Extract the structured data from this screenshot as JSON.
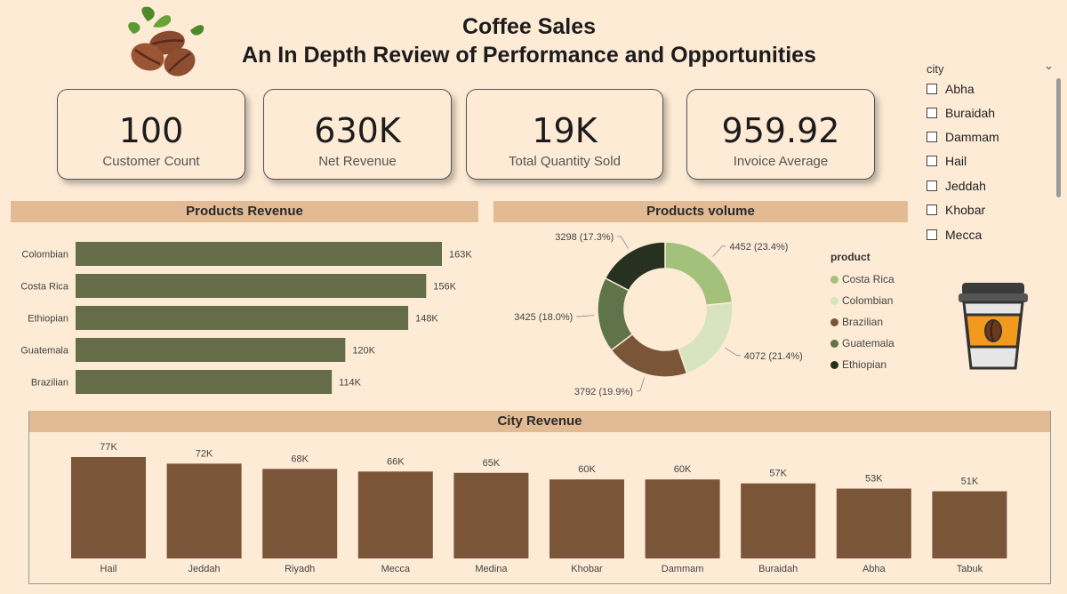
{
  "header": {
    "title_line1": "Coffee Sales",
    "title_line2": "An In Depth Review of Performance and Opportunities"
  },
  "kpis": [
    {
      "value": "100",
      "label": "Customer Count"
    },
    {
      "value": "630K",
      "label": "Net Revenue"
    },
    {
      "value": "19K",
      "label": "Total Quantity Sold"
    },
    {
      "value": "959.92",
      "label": "Invoice Average"
    }
  ],
  "slicer": {
    "title": "city",
    "items": [
      "Abha",
      "Buraidah",
      "Dammam",
      "Hail",
      "Jeddah",
      "Khobar",
      "Mecca"
    ]
  },
  "icons": {
    "logo": "coffee-beans-icon",
    "cup": "coffee-cup-icon",
    "chevron": "chevron-down-icon"
  },
  "colors": {
    "background": "#fdebd6",
    "header_bar": "#e2bb95",
    "product_bar": "#646c48",
    "city_bar": "#7b5538"
  },
  "chart_data": [
    {
      "type": "bar",
      "orientation": "horizontal",
      "title": "Products Revenue",
      "categories": [
        "Colombian",
        "Costa Rica",
        "Ethiopian",
        "Guatemala",
        "Brazilian"
      ],
      "values": [
        163000,
        156000,
        148000,
        120000,
        114000
      ],
      "labels": [
        "163K",
        "156K",
        "148K",
        "120K",
        "114K"
      ],
      "xlim": [
        0,
        163000
      ]
    },
    {
      "type": "pie",
      "variant": "donut",
      "title": "Products volume",
      "legend_title": "product",
      "legend_position": "right",
      "categories": [
        "Costa Rica",
        "Colombian",
        "Brazilian",
        "Guatemala",
        "Ethiopian"
      ],
      "values": [
        4452,
        4072,
        3792,
        3425,
        3298
      ],
      "labels": [
        "4452 (23.4%)",
        "4072 (21.4%)",
        "3792 (19.9%)",
        "3425 (18.0%)",
        "3298 (17.3%)"
      ],
      "colors": [
        "#a4c17c",
        "#d8e4c0",
        "#7b5538",
        "#5f7449",
        "#26321f"
      ]
    },
    {
      "type": "bar",
      "orientation": "vertical",
      "title": "City Revenue",
      "categories": [
        "Hail",
        "Jeddah",
        "Riyadh",
        "Mecca",
        "Medina",
        "Khobar",
        "Dammam",
        "Buraidah",
        "Abha",
        "Tabuk"
      ],
      "values": [
        77000,
        72000,
        68000,
        66000,
        65000,
        60000,
        60000,
        57000,
        53000,
        51000
      ],
      "labels": [
        "77K",
        "72K",
        "68K",
        "66K",
        "65K",
        "60K",
        "60K",
        "57K",
        "53K",
        "51K"
      ],
      "ylim": [
        0,
        77000
      ]
    }
  ]
}
